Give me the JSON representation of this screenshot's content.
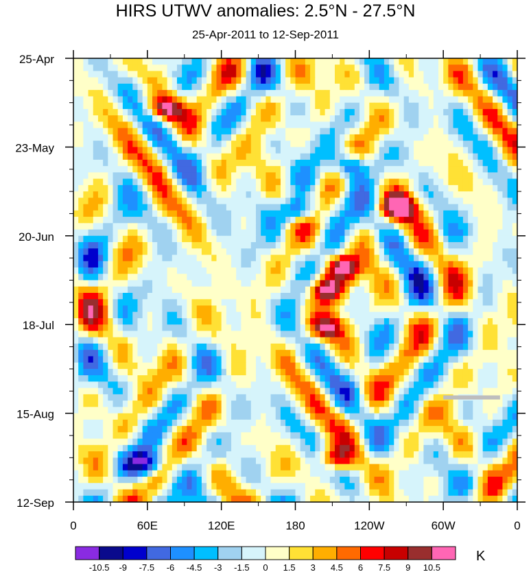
{
  "chart_data": {
    "type": "heatmap",
    "title": "HIRS UTWV anomalies: 2.5°N - 27.5°N",
    "subtitle": "25-Apr-2011 to 12-Sep-2011",
    "xlabel": "",
    "ylabel": "",
    "units": "K",
    "x_ticks": [
      "0",
      "60E",
      "120E",
      "180",
      "120W",
      "60W",
      "0"
    ],
    "x_tick_values": [
      0,
      60,
      120,
      180,
      240,
      300,
      360
    ],
    "xlim": [
      0,
      360
    ],
    "y_ticks": [
      "25-Apr",
      "23-May",
      "20-Jun",
      "18-Jul",
      "15-Aug",
      "12-Sep"
    ],
    "y_tick_values": [
      0,
      28,
      56,
      84,
      112,
      140
    ],
    "ylim": [
      0,
      140
    ],
    "y_direction": "time increases downward",
    "colorbar": {
      "levels": [
        "-10.5",
        "-9",
        "-7.5",
        "-6",
        "-4.5",
        "-3",
        "-1.5",
        "0",
        "1.5",
        "3",
        "4.5",
        "6",
        "7.5",
        "9",
        "10.5"
      ],
      "colors": [
        "#8a2be2",
        "#0a0a8c",
        "#0000cd",
        "#4169e1",
        "#1e90ff",
        "#00bfff",
        "#a0d2f0",
        "#d6f4fb",
        "#ffffc8",
        "#ffe135",
        "#ffae00",
        "#ff6a00",
        "#ff0000",
        "#c80000",
        "#992e2e",
        "#ff66b4"
      ],
      "placement": "bottom"
    },
    "features": [
      {
        "type": "anomaly-max",
        "x": 205,
        "y": 73,
        "value": 10.5
      },
      {
        "type": "anomaly-max",
        "x": 263,
        "y": 47,
        "value": 10.5
      },
      {
        "type": "anomaly-max",
        "x": 74,
        "y": 16,
        "value": 10.5
      },
      {
        "type": "anomaly-max",
        "x": 218,
        "y": 66,
        "value": 9
      },
      {
        "type": "anomaly-max",
        "x": 206,
        "y": 85,
        "value": 9
      },
      {
        "type": "anomaly-max",
        "x": 212,
        "y": 126,
        "value": 9
      },
      {
        "type": "anomaly-min",
        "x": 183,
        "y": 48,
        "value": -9
      },
      {
        "type": "anomaly-min",
        "x": 225,
        "y": 34,
        "value": -9
      },
      {
        "type": "anomaly-min",
        "x": 60,
        "y": 128,
        "value": -9
      }
    ],
    "missing_data": {
      "x_range": [
        300,
        346
      ],
      "y": 107
    }
  }
}
